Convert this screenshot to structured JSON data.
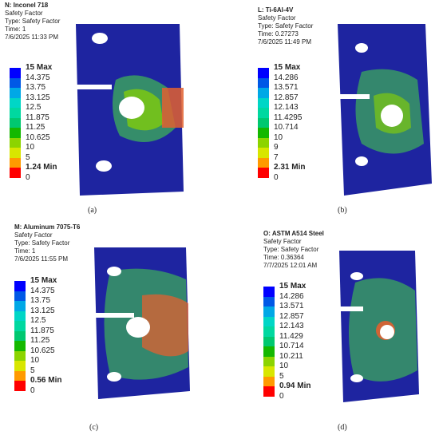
{
  "colors": {
    "legend": [
      "#0000ff",
      "#0058e6",
      "#00a8e6",
      "#00d6c6",
      "#00d8a0",
      "#00c870",
      "#14b800",
      "#8cd400",
      "#d8e600",
      "#ff9a00",
      "#ff0000"
    ],
    "plate_base": "#1e24a0",
    "plate_mid": "#3aa060",
    "plate_hot": "#e06030"
  },
  "panels": [
    {
      "id": "a",
      "header": [
        "N: Inconel 718",
        "Safety Factor",
        "Type: Safety Factor",
        "Time: 1",
        "7/6/2025 11:33 PM"
      ],
      "legend": [
        "15 Max",
        "14.375",
        "13.75",
        "13.125",
        "12.5",
        "11.875",
        "11.25",
        "10.625",
        "10",
        "5",
        "1.24  Min",
        "0"
      ],
      "caption": "(a)"
    },
    {
      "id": "b",
      "header": [
        "L: Ti-6Al-4V",
        "Safety Factor",
        "Type: Safety Factor",
        "Time: 0.27273",
        "7/6/2025 11:49 PM"
      ],
      "legend": [
        "15 Max",
        "14.286",
        "13.571",
        "12.857",
        "12.143",
        "11.4295",
        "10.714",
        "10",
        "9",
        "7",
        "2.31  Min",
        "0"
      ],
      "caption": "(b)"
    },
    {
      "id": "c",
      "header": [
        "M: Aluminum 7075-T6",
        "Safety Factor",
        "Type: Safety Factor",
        "Time: 1",
        "7/6/2025 11:55 PM"
      ],
      "legend": [
        "15 Max",
        "14.375",
        "13.75",
        "13.125",
        "12.5",
        "11.875",
        "11.25",
        "10.625",
        "10",
        "5",
        "0.56  Min",
        "0"
      ],
      "caption": "(c)"
    },
    {
      "id": "d",
      "header": [
        "O: ASTM A514 Steel",
        "Safety Factor",
        "Type: Safety Factor",
        "Time: 0.36364",
        "7/7/2025 12:01 AM"
      ],
      "legend": [
        "15 Max",
        "14.286",
        "13.571",
        "12.857",
        "12.143",
        "11.429",
        "10.714",
        "10.211",
        "10",
        "5",
        "0.94  Min",
        "0"
      ],
      "caption": "(d)"
    }
  ]
}
